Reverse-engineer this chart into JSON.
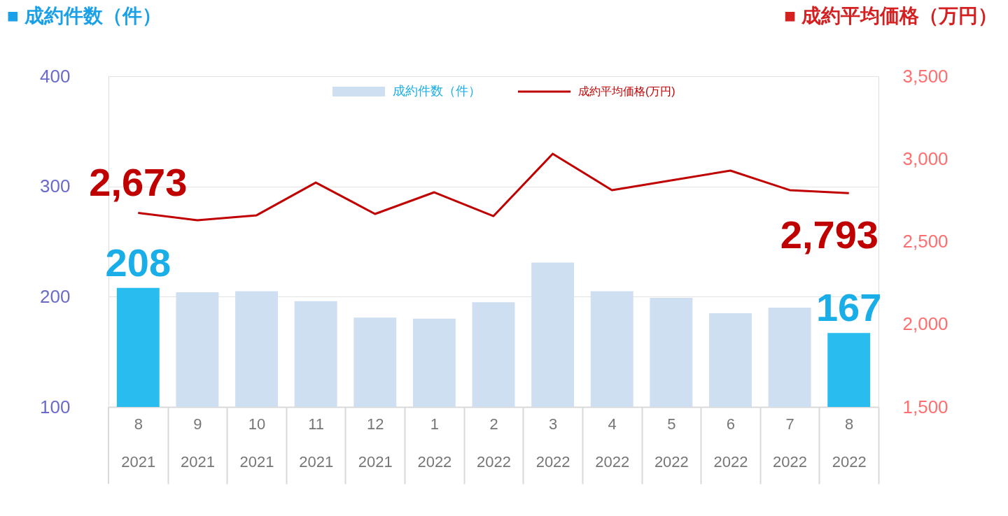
{
  "chart_data": {
    "type": "bar",
    "ylabel": "■ 成約件数（件）",
    "y2label": "■ 成約平均価格（万円）",
    "categories": [
      "8\n2021",
      "9\n2021",
      "10\n2021",
      "11\n2021",
      "12\n2021",
      "1\n2022",
      "2\n2022",
      "3\n2022",
      "4\n2022",
      "5\n2022",
      "6\n2022",
      "7\n2022",
      "8\n2022"
    ],
    "series": [
      {
        "name": "成約件数（件）",
        "color": "#cfdff2",
        "colors": [
          "#29bcef",
          "#cfdff2",
          "#cfdff2",
          "#cfdff2",
          "#cfdff2",
          "#cfdff2",
          "#cfdff2",
          "#cfdff2",
          "#cfdff2",
          "#cfdff2",
          "#cfdff2",
          "#cfdff2",
          "#29bcef"
        ],
        "values": [
          208,
          204,
          205,
          196,
          181,
          180,
          195,
          231,
          205,
          199,
          185,
          190,
          167
        ],
        "value_labels": [
          "208",
          null,
          null,
          null,
          null,
          null,
          null,
          null,
          null,
          null,
          null,
          null,
          "167"
        ]
      },
      {
        "name": "成約平均価格(万円)",
        "type": "line",
        "axis": "y2",
        "color": "#c00000",
        "values": [
          2673,
          2629,
          2659,
          2857,
          2667,
          2798,
          2654,
          3031,
          2811,
          2870,
          2929,
          2811,
          2793
        ],
        "value_labels": [
          "2,673",
          null,
          null,
          null,
          null,
          null,
          null,
          null,
          null,
          null,
          null,
          null,
          "2,793"
        ]
      }
    ],
    "ylim": [
      100,
      400
    ],
    "yticks": [
      100,
      200,
      300,
      400
    ],
    "y2lim": [
      1500,
      3500
    ],
    "y2ticks": [
      {
        "value": 1500,
        "label": "1,500"
      },
      {
        "value": 2000,
        "label": "2,000"
      },
      {
        "value": 2500,
        "label": "2,500"
      },
      {
        "value": 3000,
        "label": "3,000"
      },
      {
        "value": 3500,
        "label": "3,500"
      }
    ],
    "grid": "y",
    "legend": "top"
  }
}
